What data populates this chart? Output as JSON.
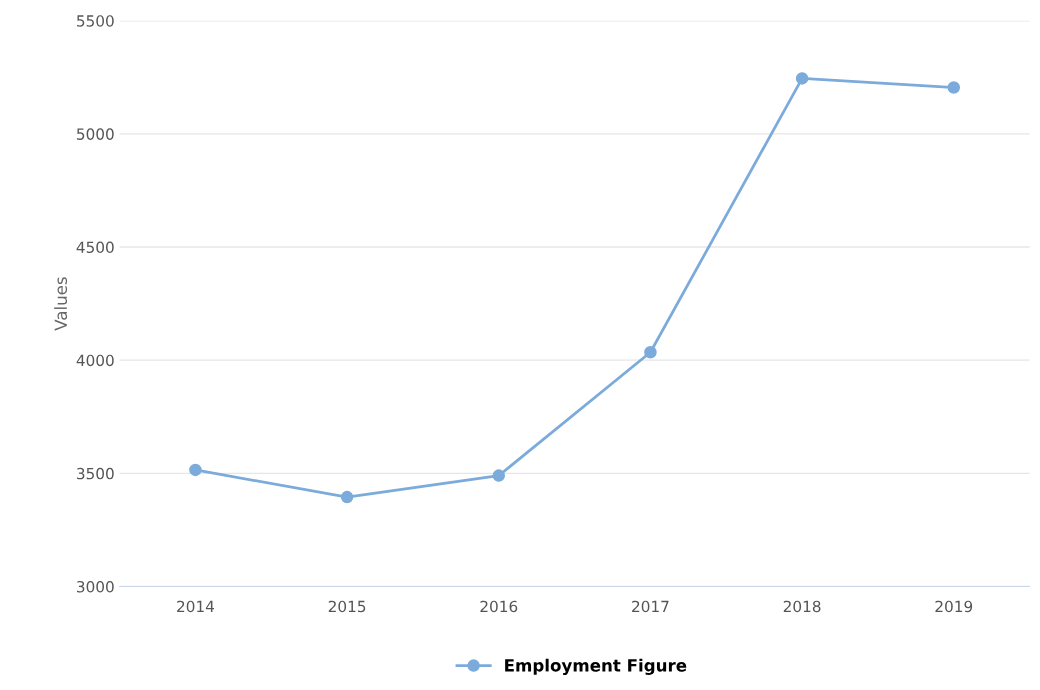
{
  "chart_data": {
    "type": "line",
    "ylabel": "Values",
    "categories": [
      "2014",
      "2015",
      "2016",
      "2017",
      "2018",
      "2019"
    ],
    "series": [
      {
        "name": "Employment Figure",
        "color": "#7cabdb",
        "values": [
          3515,
          3395,
          3490,
          4035,
          5245,
          5205
        ]
      }
    ],
    "ylim": [
      3000,
      5500
    ],
    "yticks": [
      3000,
      3500,
      4000,
      4500,
      5000,
      5500
    ],
    "grid": "y",
    "legend": "bottom",
    "marker": "circle",
    "line_style": "solid"
  }
}
